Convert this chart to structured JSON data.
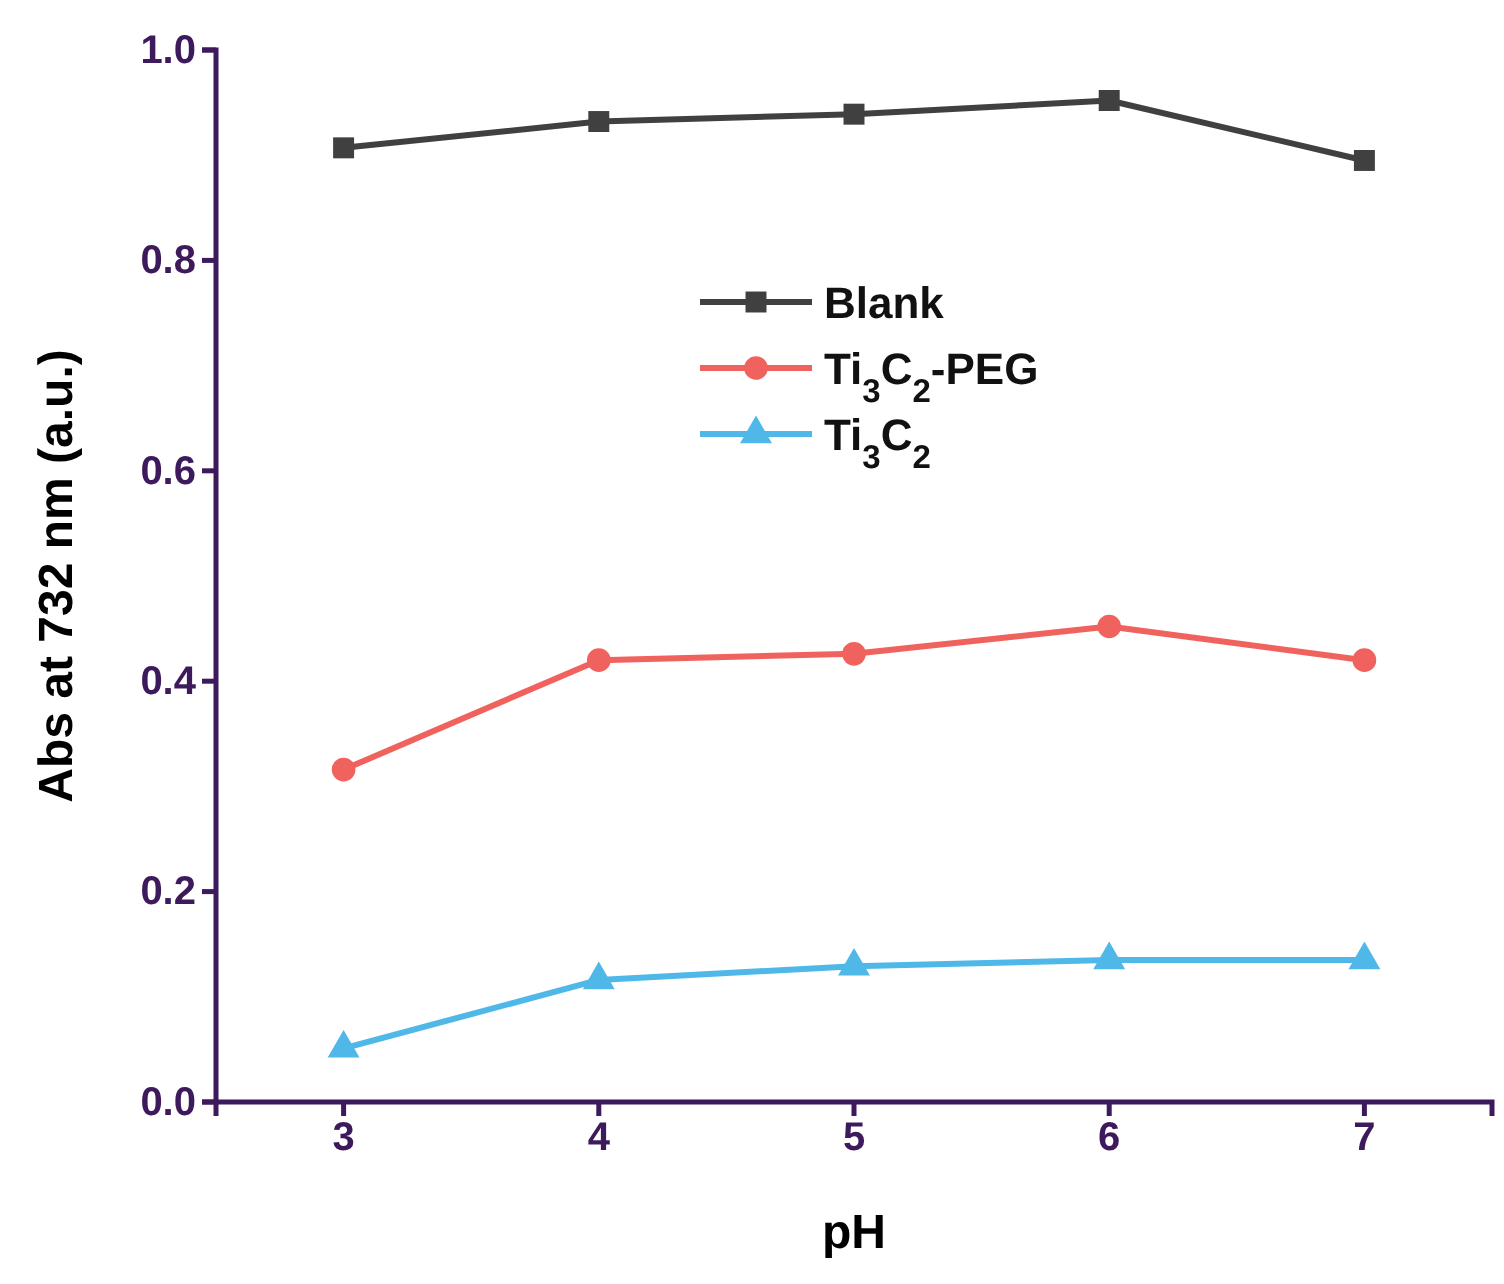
{
  "chart_data": {
    "type": "line",
    "xlabel": "pH",
    "ylabel": "Abs at 732 nm (a.u.)",
    "x": [
      3,
      4,
      5,
      6,
      7
    ],
    "series": [
      {
        "name": "Blank",
        "color": "#404040",
        "marker": "square",
        "values": [
          0.907,
          0.932,
          0.939,
          0.952,
          0.895
        ]
      },
      {
        "name": "Ti$_{3}$C$_{2}$-PEG",
        "color": "#f0625e",
        "marker": "circle",
        "values": [
          0.316,
          0.42,
          0.426,
          0.452,
          0.42
        ]
      },
      {
        "name": "Ti$_{3}$C$_{2}$",
        "color": "#4fb8e8",
        "marker": "triangle",
        "values": [
          0.051,
          0.116,
          0.129,
          0.135,
          0.135
        ]
      }
    ],
    "xlim": [
      2.5,
      7.5
    ],
    "xticks": [
      3,
      4,
      5,
      6,
      7
    ],
    "ylim": [
      0,
      1.0
    ],
    "yticks": [
      {
        "value": 0,
        "label": "0.0"
      },
      0.2,
      0.4,
      0.6,
      0.8,
      {
        "value": 1,
        "label": "1.0"
      }
    ],
    "grid": false,
    "legend": "top",
    "line_style": "solid"
  }
}
